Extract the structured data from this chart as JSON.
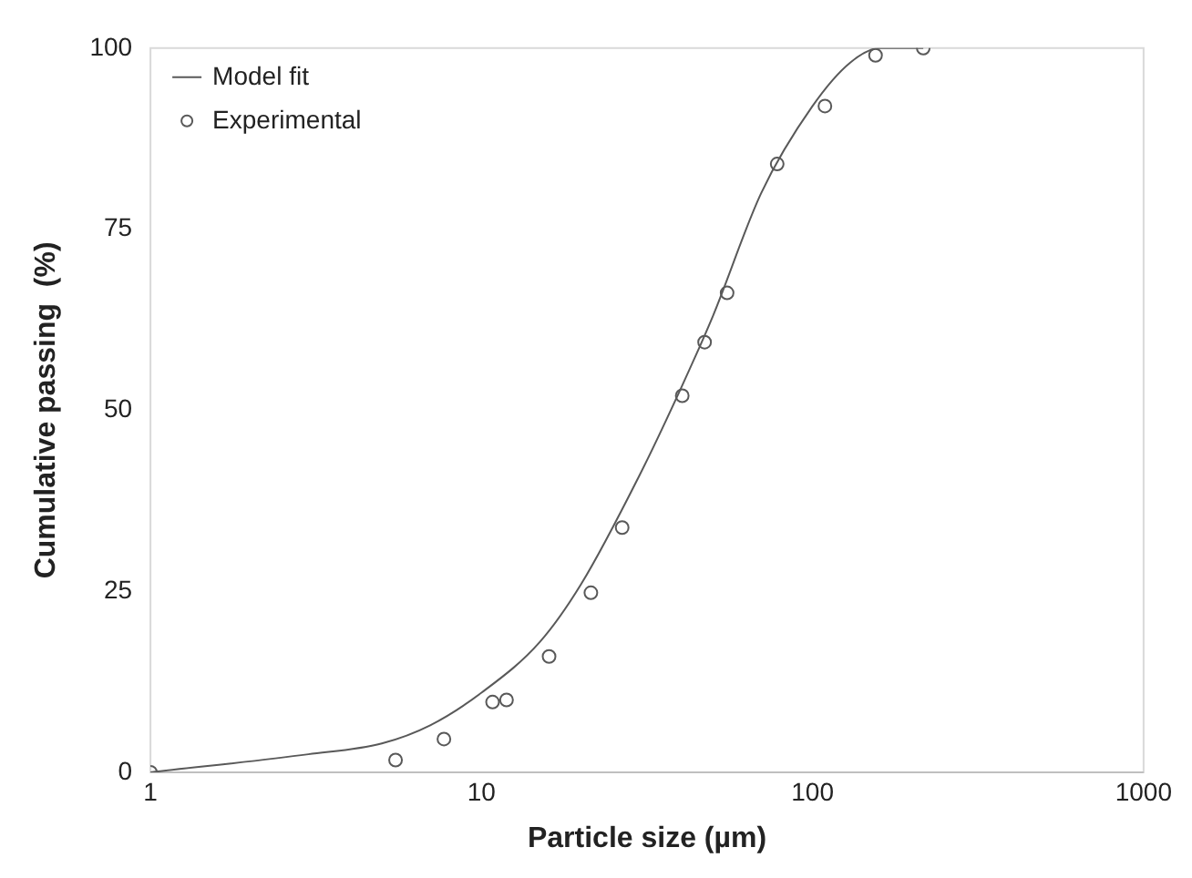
{
  "chart_data": {
    "type": "scatter",
    "xlabel": "Particle size (µm)",
    "ylabel": "Cumulative passing  (%)",
    "log": "x",
    "xlim": [
      1,
      1000
    ],
    "xticks": [
      1,
      10,
      100,
      1000
    ],
    "ylim": [
      0,
      100
    ],
    "yticks": [
      0,
      25,
      50,
      75,
      100
    ],
    "grid": false,
    "legend": "top left",
    "series": [
      {
        "name": "Model fit",
        "type": "line",
        "color": "#595959",
        "marker": "none",
        "x": [
          1,
          3,
          5,
          7,
          10,
          15,
          20,
          30,
          40,
          50,
          70,
          100,
          130,
          160,
          216
        ],
        "values": [
          0,
          2.5,
          4,
          6.5,
          11,
          18,
          26,
          41,
          53,
          63,
          80,
          92,
          98,
          100,
          100
        ]
      },
      {
        "name": "Experimental",
        "color": "#595959",
        "marker": "circle",
        "x": [
          1,
          5.5,
          7.7,
          10.8,
          11.9,
          16,
          21.4,
          26.6,
          40.4,
          47.2,
          55.2,
          78.2,
          109,
          155,
          216
        ],
        "values": [
          0,
          1.7,
          4.6,
          9.7,
          10,
          16,
          24.8,
          33.8,
          52,
          59.4,
          66.2,
          84,
          92,
          99,
          100
        ]
      }
    ]
  }
}
